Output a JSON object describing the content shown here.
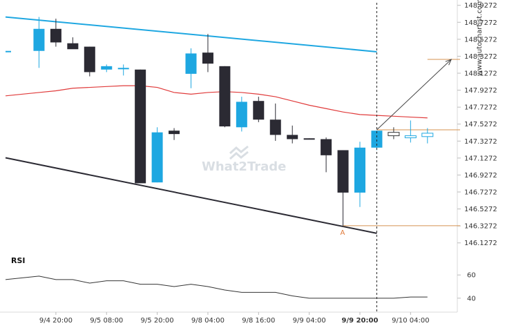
{
  "brand": "www.autochartist.com",
  "watermark": "What2Trade",
  "colors": {
    "bullish": "#1ea7e1",
    "bearish": "#2b2a33",
    "upper_trend": "#1ea7e1",
    "lower_trend": "#2b2a33",
    "moving_average": "#e03a3a",
    "level": "#d4924f",
    "projection": "#444444",
    "rsi": "#333333"
  },
  "chart_data": {
    "type": "candlestick",
    "price_axis": {
      "ticks": [
        "148.9272",
        "148.7272",
        "148.5272",
        "148.3272",
        "148.1272",
        "147.9272",
        "147.7272",
        "147.5272",
        "147.3272",
        "147.1272",
        "146.9272",
        "146.7272",
        "146.5272",
        "146.3272",
        "146.1272"
      ],
      "range": [
        146.06,
        148.99
      ]
    },
    "time_axis": {
      "labels": [
        "9/4 20:00",
        "9/5 08:00",
        "9/5 20:00",
        "9/8 04:00",
        "9/8 16:00",
        "9/9 04:00",
        "9/9 20:00",
        "9/10 04:00"
      ],
      "label_index": [
        2,
        5,
        8,
        11,
        14,
        17,
        20,
        23
      ],
      "highlighted_label": "9/9 20:00"
    },
    "candles": [
      {
        "o": 148.39,
        "h": 148.39,
        "l": 148.39,
        "c": 148.39
      },
      {
        "o": 148.39,
        "h": 148.79,
        "l": 148.19,
        "c": 148.65
      },
      {
        "o": 148.65,
        "h": 148.77,
        "l": 148.44,
        "c": 148.49
      },
      {
        "o": 148.48,
        "h": 148.55,
        "l": 148.43,
        "c": 148.41
      },
      {
        "o": 148.44,
        "h": 148.44,
        "l": 148.09,
        "c": 148.14
      },
      {
        "o": 148.17,
        "h": 148.23,
        "l": 148.14,
        "c": 148.21
      },
      {
        "o": 148.19,
        "h": 148.23,
        "l": 148.1,
        "c": 148.19
      },
      {
        "o": 148.17,
        "h": 148.17,
        "l": 146.83,
        "c": 146.83
      },
      {
        "o": 146.84,
        "h": 147.49,
        "l": 146.84,
        "c": 147.43
      },
      {
        "o": 147.45,
        "h": 147.48,
        "l": 147.34,
        "c": 147.41
      },
      {
        "o": 148.12,
        "h": 148.42,
        "l": 147.95,
        "c": 148.36
      },
      {
        "o": 148.37,
        "h": 148.59,
        "l": 148.14,
        "c": 148.24
      },
      {
        "o": 148.21,
        "h": 148.21,
        "l": 147.49,
        "c": 147.5
      },
      {
        "o": 147.49,
        "h": 147.85,
        "l": 147.44,
        "c": 147.79
      },
      {
        "o": 147.8,
        "h": 147.85,
        "l": 147.55,
        "c": 147.58
      },
      {
        "o": 147.58,
        "h": 147.77,
        "l": 147.33,
        "c": 147.4
      },
      {
        "o": 147.4,
        "h": 147.51,
        "l": 147.3,
        "c": 147.35
      },
      {
        "o": 147.36,
        "h": 147.36,
        "l": 147.35,
        "c": 147.35
      },
      {
        "o": 147.35,
        "h": 147.37,
        "l": 146.96,
        "c": 147.16
      },
      {
        "o": 147.22,
        "h": 147.22,
        "l": 146.33,
        "c": 146.72
      },
      {
        "o": 146.72,
        "h": 147.32,
        "l": 146.55,
        "c": 147.25
      },
      {
        "o": 147.25,
        "h": 147.45,
        "l": 147.22,
        "c": 147.45
      }
    ],
    "projected_candles": [
      {
        "o": 147.43,
        "h": 147.49,
        "l": 147.35,
        "c": 147.39
      },
      {
        "o": 147.39,
        "h": 147.57,
        "l": 147.31,
        "c": 147.39
      },
      {
        "o": 147.38,
        "h": 147.48,
        "l": 147.3,
        "c": 147.42
      }
    ],
    "moving_average": [
      147.86,
      147.9,
      147.92,
      147.95,
      147.96,
      147.97,
      147.98,
      147.98,
      147.96,
      147.9,
      147.88,
      147.9,
      147.91,
      147.9,
      147.88,
      147.85,
      147.8,
      147.75,
      147.71,
      147.67,
      147.64,
      147.63,
      147.62,
      147.61,
      147.6
    ],
    "upper_trendline": {
      "from": [
        0,
        148.79
      ],
      "to": [
        21,
        148.38
      ]
    },
    "lower_trendline": {
      "from": [
        0,
        147.13
      ],
      "to": [
        21,
        146.24
      ]
    },
    "levels": [
      {
        "value": 147.46,
        "from_index": 21
      },
      {
        "value": 148.29,
        "from_index": 24
      },
      {
        "value": 146.33,
        "from_index": 19
      }
    ],
    "projection_arrow": {
      "from": [
        21,
        147.46
      ],
      "to": [
        25,
        148.29
      ]
    },
    "point_label": {
      "text": "A",
      "index": 19,
      "value": 146.33
    },
    "current_bar_index": 21,
    "rsi": {
      "title": "RSI",
      "ticks": [
        "60",
        "40"
      ],
      "tick_values": [
        60,
        40
      ],
      "range": [
        28,
        72
      ],
      "values": [
        56,
        59,
        56,
        56,
        53,
        55,
        55,
        52,
        52,
        50,
        52,
        50,
        47,
        45,
        45,
        45,
        42,
        40,
        40,
        40,
        40,
        40,
        40,
        41,
        41
      ]
    }
  }
}
